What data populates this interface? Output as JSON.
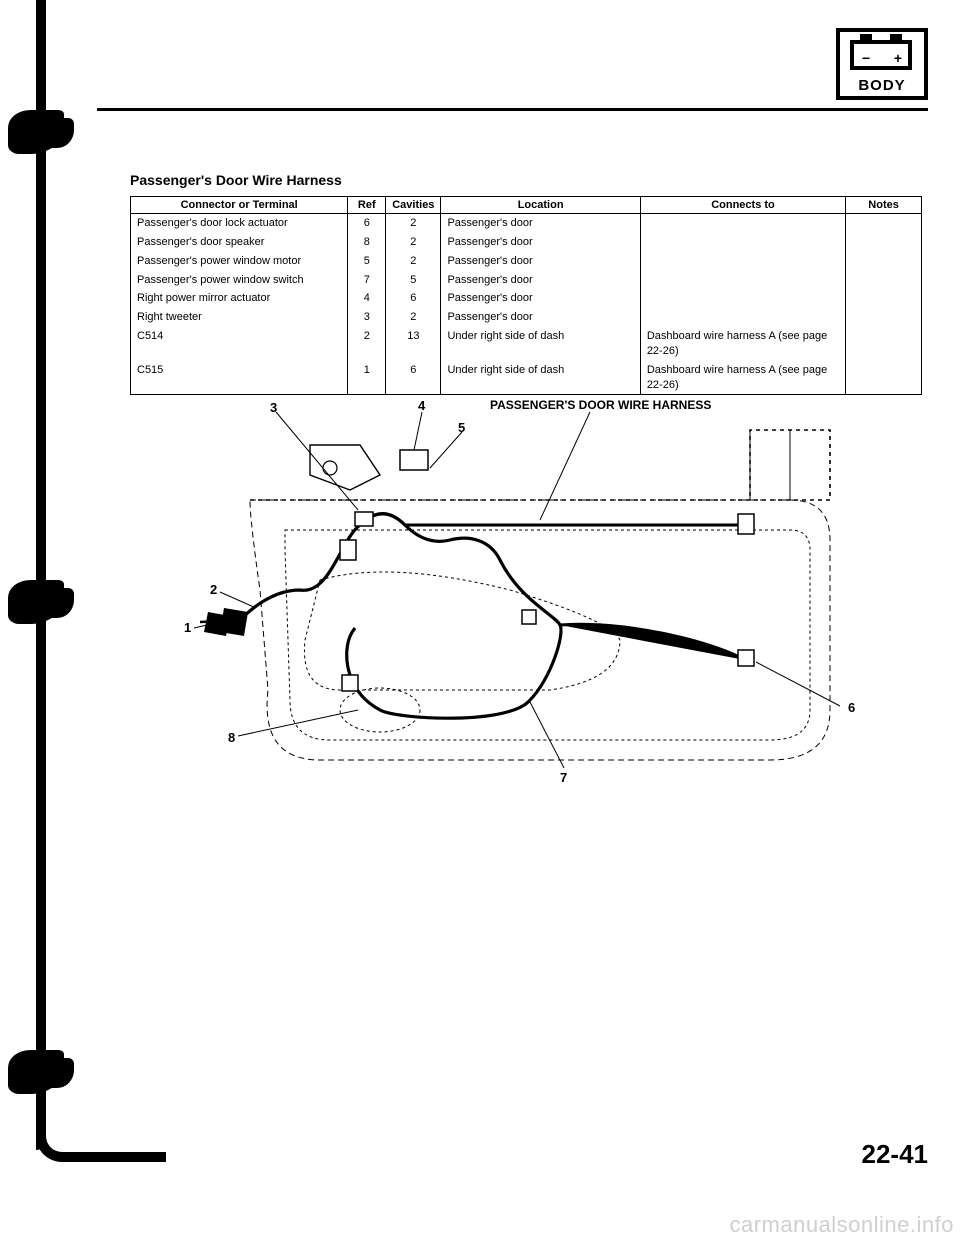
{
  "header": {
    "icon_label": "BODY",
    "minus": "−",
    "plus": "+"
  },
  "section_title": "Passenger's Door Wire Harness",
  "table": {
    "headers": {
      "connector": "Connector or Terminal",
      "ref": "Ref",
      "cavities": "Cavities",
      "location": "Location",
      "connects_to": "Connects to",
      "notes": "Notes"
    },
    "rows": [
      {
        "connector": "Passenger's door lock actuator",
        "ref": "6",
        "cav": "2",
        "loc": "Passenger's door",
        "to": "",
        "notes": ""
      },
      {
        "connector": "Passenger's door speaker",
        "ref": "8",
        "cav": "2",
        "loc": "Passenger's door",
        "to": "",
        "notes": ""
      },
      {
        "connector": "Passenger's power window motor",
        "ref": "5",
        "cav": "2",
        "loc": "Passenger's door",
        "to": "",
        "notes": ""
      },
      {
        "connector": "Passenger's power window switch",
        "ref": "7",
        "cav": "5",
        "loc": "Passenger's door",
        "to": "",
        "notes": ""
      },
      {
        "connector": "Right power mirror actuator",
        "ref": "4",
        "cav": "6",
        "loc": "Passenger's door",
        "to": "",
        "notes": ""
      },
      {
        "connector": "Right tweeter",
        "ref": "3",
        "cav": "2",
        "loc": "Passenger's door",
        "to": "",
        "notes": ""
      },
      {
        "connector": "C514",
        "ref": "2",
        "cav": "13",
        "loc": "Under right side of dash",
        "to": "Dashboard wire harness A (see page 22-26)",
        "notes": ""
      },
      {
        "connector": "C515",
        "ref": "1",
        "cav": "6",
        "loc": "Under right side of dash",
        "to": "Dashboard wire harness A (see page 22-26)",
        "notes": ""
      }
    ]
  },
  "diagram": {
    "title": "PASSENGER'S DOOR WIRE HARNESS",
    "callouts": [
      "1",
      "2",
      "3",
      "4",
      "5",
      "6",
      "7",
      "8"
    ],
    "stroke": "#000000",
    "thin_stroke": "#000000",
    "dash": "4 3",
    "bg": "#ffffff"
  },
  "page_number": "22-41",
  "watermark": "carmanualsonline.info"
}
